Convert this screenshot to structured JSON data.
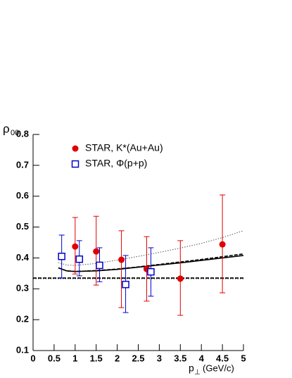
{
  "chart_data": {
    "type": "scatter",
    "ylabel": {
      "symbol": "ρ",
      "subscript": "00"
    },
    "xlabel": {
      "symbol": "p",
      "subscript": "⊥",
      "unit": "(GeV/c)"
    },
    "xlim": [
      0,
      5
    ],
    "ylim": [
      0.1,
      0.8
    ],
    "xticks": [
      0,
      0.5,
      1,
      1.5,
      2,
      2.5,
      3,
      3.5,
      4,
      4.5,
      5
    ],
    "yticks": [
      0.1,
      0.2,
      0.3,
      0.4,
      0.5,
      0.6,
      0.7,
      0.8
    ],
    "series": [
      {
        "name": "STAR, K*(Au+Au)",
        "color": "#e00000",
        "marker": "circle",
        "x": [
          1.0,
          1.5,
          2.1,
          2.7,
          3.5,
          4.5
        ],
        "values": [
          0.437,
          0.421,
          0.394,
          0.364,
          0.333,
          0.444
        ],
        "errors_low": [
          0.089,
          0.109,
          0.155,
          0.104,
          0.119,
          0.157
        ],
        "errors_high": [
          0.094,
          0.114,
          0.094,
          0.105,
          0.123,
          0.16
        ]
      },
      {
        "name": "STAR, Φ(p+p)",
        "color": "#0000cc",
        "marker": "square",
        "x": [
          0.68,
          1.1,
          1.58,
          2.2,
          2.8
        ],
        "values": [
          0.405,
          0.396,
          0.376,
          0.314,
          0.355
        ],
        "errors_low": [
          0.07,
          0.054,
          0.053,
          0.091,
          0.079
        ],
        "errors_high": [
          0.069,
          0.06,
          0.057,
          0.094,
          0.078
        ]
      }
    ],
    "curves": [
      {
        "style": "dotted",
        "color": "#555555",
        "x": [
          0.6,
          0.8,
          1,
          1.5,
          2,
          2.5,
          3,
          3.5,
          4,
          4.5,
          5
        ],
        "values": [
          0.385,
          0.377,
          0.376,
          0.382,
          0.393,
          0.405,
          0.418,
          0.432,
          0.447,
          0.466,
          0.488
        ]
      },
      {
        "style": "solid",
        "color": "#000000",
        "x": [
          0.6,
          0.8,
          1,
          1.5,
          2,
          2.5,
          3,
          3.5,
          4,
          4.5,
          5
        ],
        "values": [
          0.368,
          0.358,
          0.356,
          0.358,
          0.363,
          0.37,
          0.377,
          0.384,
          0.392,
          0.4,
          0.408
        ]
      },
      {
        "style": "dashed",
        "color": "#000000",
        "x": [
          0.6,
          0.8,
          1,
          1.5,
          2,
          2.5,
          3,
          3.5,
          4,
          4.5,
          5
        ],
        "values": [
          0.368,
          0.358,
          0.356,
          0.359,
          0.364,
          0.371,
          0.379,
          0.387,
          0.395,
          0.404,
          0.413
        ]
      },
      {
        "style": "dotted",
        "color": "#000000",
        "x": [
          0,
          5
        ],
        "values": [
          0.333,
          0.333
        ]
      },
      {
        "style": "dashed",
        "color": "#000000",
        "x": [
          0,
          5
        ],
        "values": [
          0.335,
          0.335
        ]
      }
    ]
  }
}
